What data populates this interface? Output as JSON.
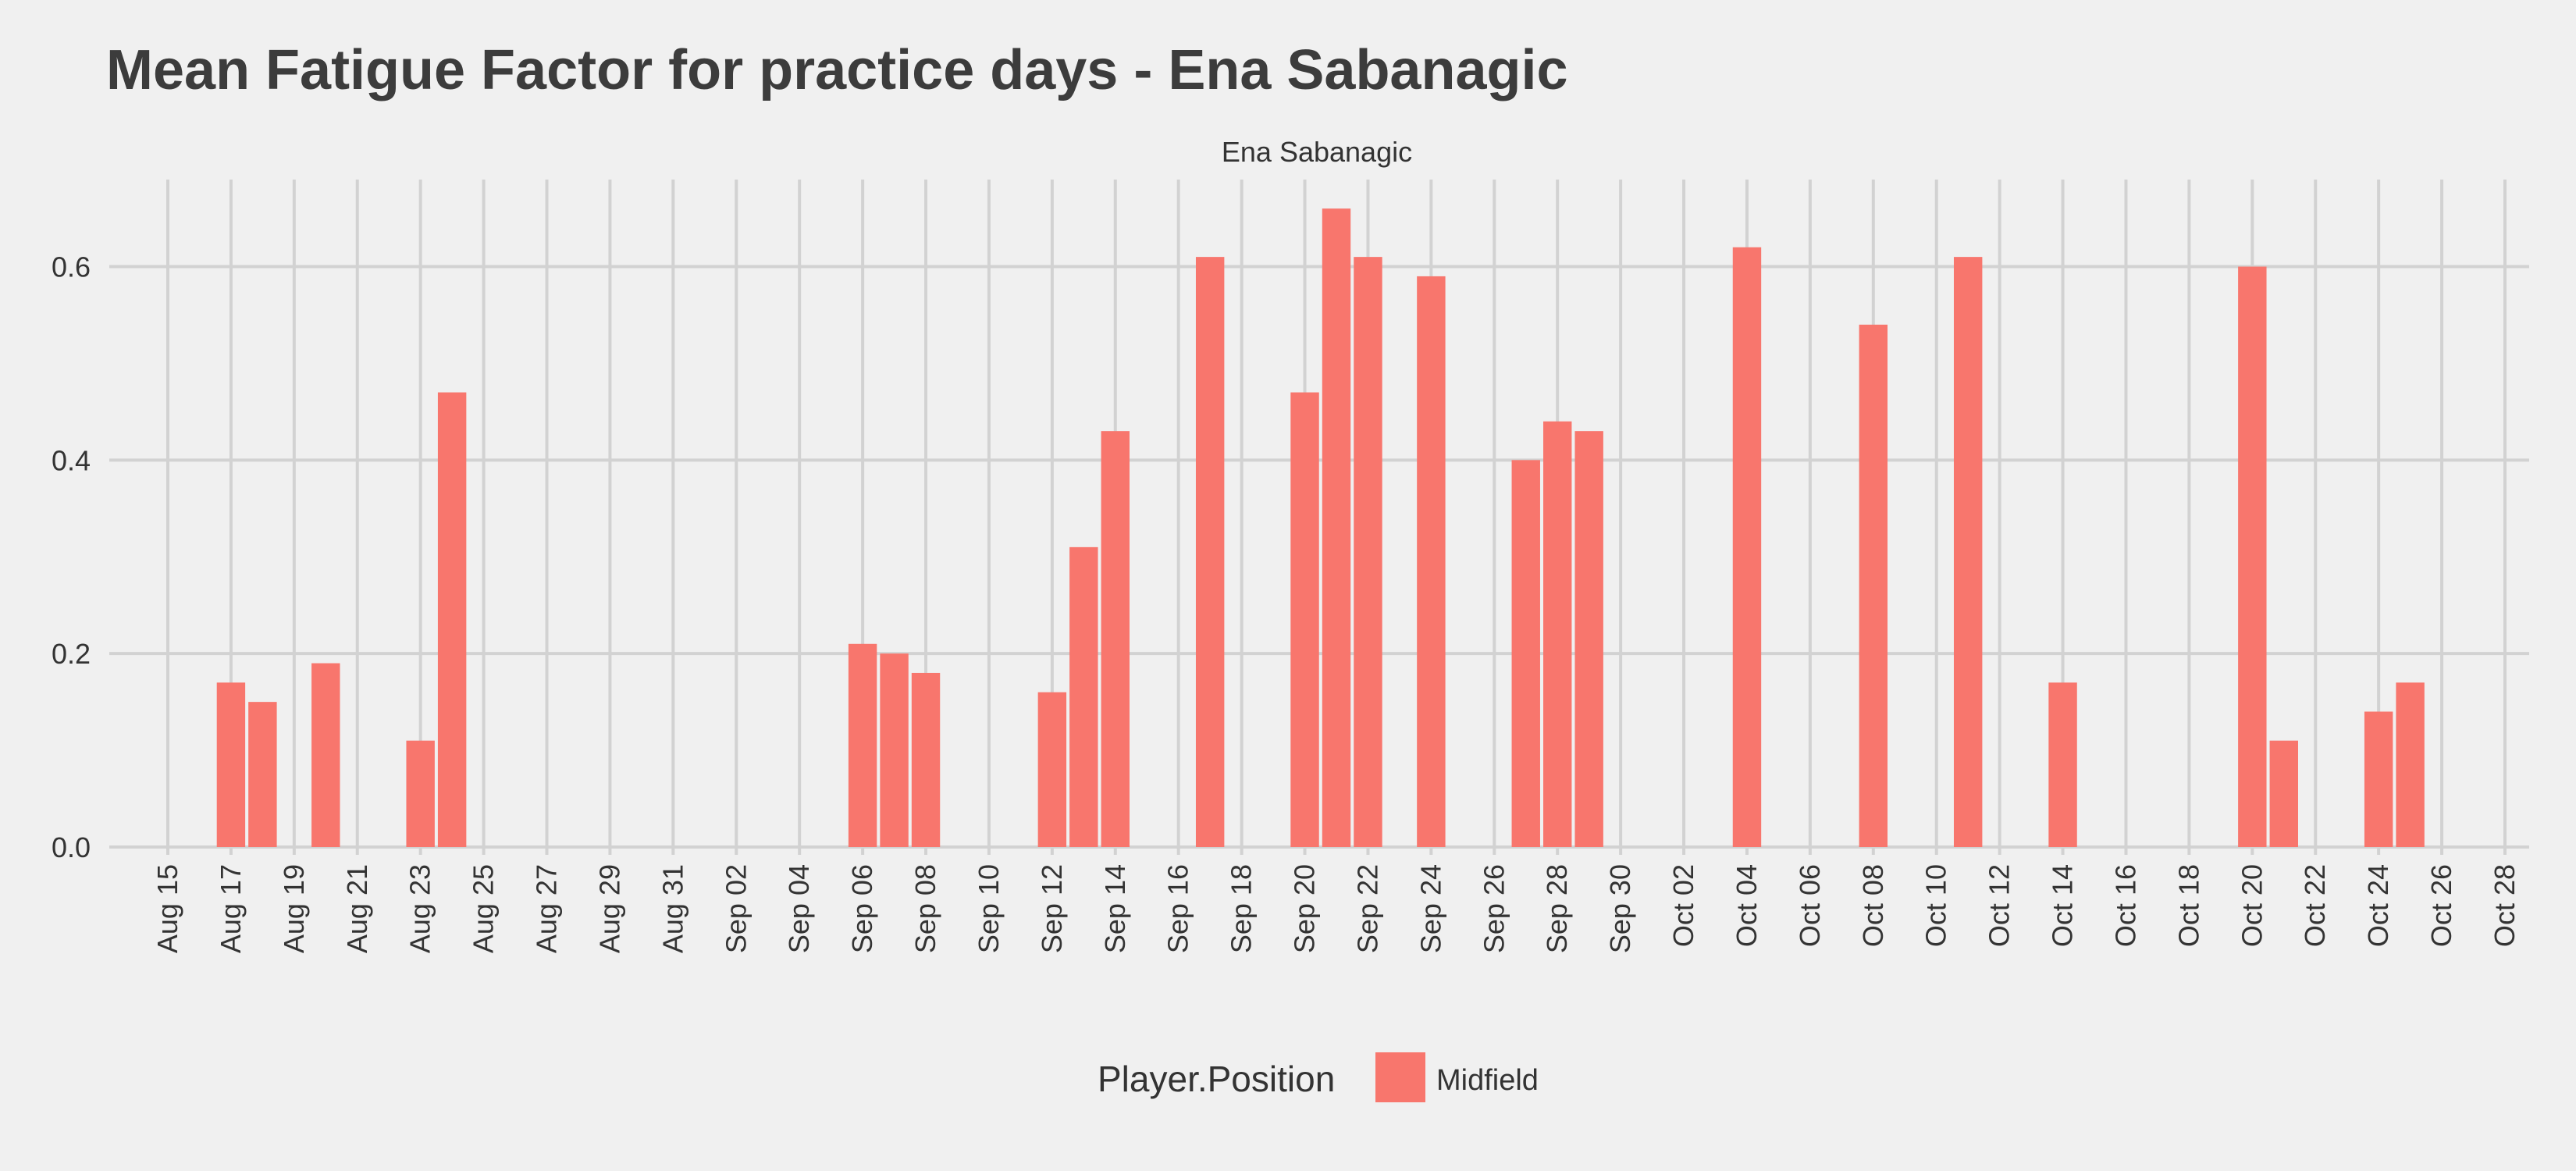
{
  "chart_data": {
    "type": "bar",
    "title": "Mean Fatigue Factor for practice days -  Ena Sabanagic",
    "facet_label": "Ena Sabanagic",
    "xlabel": "",
    "ylabel": "",
    "x_range": [
      "2019-08-15",
      "2019-10-28"
    ],
    "ylim": [
      0,
      0.69
    ],
    "y_ticks": [
      0.0,
      0.2,
      0.4,
      0.6
    ],
    "y_tick_labels": [
      "0.0",
      "0.2",
      "0.4",
      "0.6"
    ],
    "x_ticks": [
      "2019-08-15",
      "2019-08-17",
      "2019-08-19",
      "2019-08-21",
      "2019-08-23",
      "2019-08-25",
      "2019-08-27",
      "2019-08-29",
      "2019-08-31",
      "2019-09-02",
      "2019-09-04",
      "2019-09-06",
      "2019-09-08",
      "2019-09-10",
      "2019-09-12",
      "2019-09-14",
      "2019-09-16",
      "2019-09-18",
      "2019-09-20",
      "2019-09-22",
      "2019-09-24",
      "2019-09-26",
      "2019-09-28",
      "2019-09-30",
      "2019-10-02",
      "2019-10-04",
      "2019-10-06",
      "2019-10-08",
      "2019-10-10",
      "2019-10-12",
      "2019-10-14",
      "2019-10-16",
      "2019-10-18",
      "2019-10-20",
      "2019-10-22",
      "2019-10-24",
      "2019-10-26",
      "2019-10-28"
    ],
    "x_tick_labels": [
      "Aug 15",
      "Aug 17",
      "Aug 19",
      "Aug 21",
      "Aug 23",
      "Aug 25",
      "Aug 27",
      "Aug 29",
      "Aug 31",
      "Sep 02",
      "Sep 04",
      "Sep 06",
      "Sep 08",
      "Sep 10",
      "Sep 12",
      "Sep 14",
      "Sep 16",
      "Sep 18",
      "Sep 20",
      "Sep 22",
      "Sep 24",
      "Sep 26",
      "Sep 28",
      "Sep 30",
      "Oct 02",
      "Oct 04",
      "Oct 06",
      "Oct 08",
      "Oct 10",
      "Oct 12",
      "Oct 14",
      "Oct 16",
      "Oct 18",
      "Oct 20",
      "Oct 22",
      "Oct 24",
      "Oct 26",
      "Oct 28"
    ],
    "grid": true,
    "legend_position": "bottom",
    "legend_title": "Player.Position",
    "series": [
      {
        "name": "Midfield",
        "color": "#f8766d",
        "points": [
          {
            "date": "2019-08-17",
            "value": 0.17
          },
          {
            "date": "2019-08-18",
            "value": 0.15
          },
          {
            "date": "2019-08-20",
            "value": 0.19
          },
          {
            "date": "2019-08-23",
            "value": 0.11
          },
          {
            "date": "2019-08-24",
            "value": 0.47
          },
          {
            "date": "2019-09-06",
            "value": 0.21
          },
          {
            "date": "2019-09-07",
            "value": 0.2
          },
          {
            "date": "2019-09-08",
            "value": 0.18
          },
          {
            "date": "2019-09-12",
            "value": 0.16
          },
          {
            "date": "2019-09-13",
            "value": 0.31
          },
          {
            "date": "2019-09-14",
            "value": 0.43
          },
          {
            "date": "2019-09-17",
            "value": 0.61
          },
          {
            "date": "2019-09-20",
            "value": 0.47
          },
          {
            "date": "2019-09-21",
            "value": 0.66
          },
          {
            "date": "2019-09-22",
            "value": 0.61
          },
          {
            "date": "2019-09-24",
            "value": 0.59
          },
          {
            "date": "2019-09-27",
            "value": 0.4
          },
          {
            "date": "2019-09-28",
            "value": 0.44
          },
          {
            "date": "2019-09-29",
            "value": 0.43
          },
          {
            "date": "2019-10-04",
            "value": 0.62
          },
          {
            "date": "2019-10-08",
            "value": 0.54
          },
          {
            "date": "2019-10-11",
            "value": 0.61
          },
          {
            "date": "2019-10-14",
            "value": 0.17
          },
          {
            "date": "2019-10-20",
            "value": 0.6
          },
          {
            "date": "2019-10-21",
            "value": 0.11
          },
          {
            "date": "2019-10-24",
            "value": 0.14
          },
          {
            "date": "2019-10-25",
            "value": 0.17
          }
        ]
      }
    ]
  }
}
